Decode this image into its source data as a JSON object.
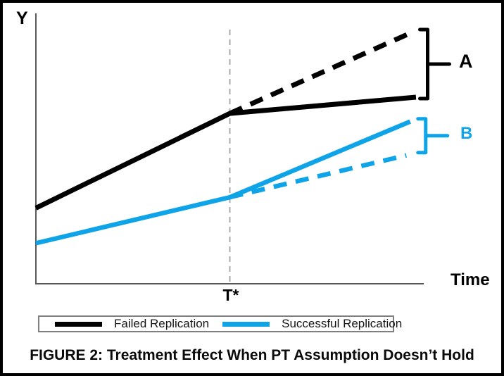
{
  "figure": {
    "caption": "FIGURE 2: Treatment Effect When PT Assumption Doesn’t Hold"
  },
  "chart_data": {
    "type": "line",
    "title": "",
    "ylabel": "Y",
    "xlabel": "Time",
    "x_tick_labels": [
      "T*"
    ],
    "x_range": [
      0,
      100
    ],
    "y_range": [
      0,
      100
    ],
    "grid": false,
    "treatment_time_x": 50,
    "treatment_line_y_span": [
      0,
      94
    ],
    "axis_color": "#595959",
    "treatment_line_color": "#A9A9A9",
    "series": [
      {
        "name": "failed-replication-observed",
        "color": "#000000",
        "style": "solid",
        "width": 7,
        "points": [
          [
            0,
            28
          ],
          [
            50,
            63
          ],
          [
            98,
            69
          ]
        ]
      },
      {
        "name": "failed-replication-counterfactual",
        "color": "#000000",
        "style": "dashed",
        "width": 7,
        "points": [
          [
            50,
            63
          ],
          [
            97,
            93
          ]
        ]
      },
      {
        "name": "successful-replication-observed",
        "color": "#0FA4E8",
        "style": "solid",
        "width": 6.5,
        "points": [
          [
            0,
            15
          ],
          [
            50,
            32
          ],
          [
            96.5,
            60
          ]
        ]
      },
      {
        "name": "successful-replication-counterfactual",
        "color": "#0FA4E8",
        "style": "dashed",
        "width": 6.5,
        "points": [
          [
            50,
            32
          ],
          [
            95.5,
            47.5
          ]
        ]
      }
    ],
    "annotations": [
      {
        "label": "A",
        "color": "#000000",
        "x": 101,
        "y_top": 94,
        "y_bottom": 68.5
      },
      {
        "label": "B",
        "color": "#0FA4E8",
        "x": 100.5,
        "y_top": 61,
        "y_bottom": 48.5
      }
    ],
    "legend": [
      {
        "label": "Failed Replication",
        "color": "#000000"
      },
      {
        "label": "Successful Replication",
        "color": "#0FA4E8"
      }
    ]
  }
}
